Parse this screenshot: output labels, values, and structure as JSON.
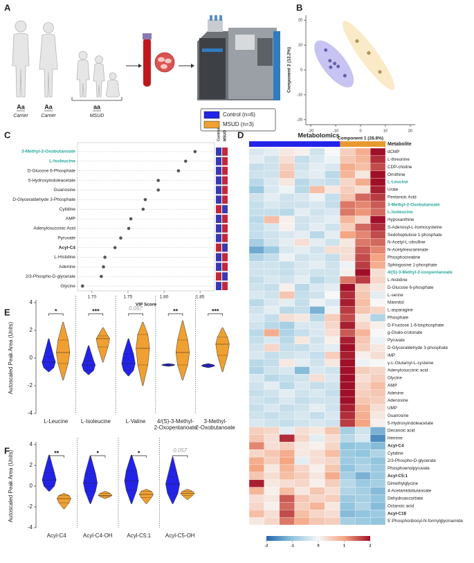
{
  "illustration": {
    "panel": "A",
    "people": [
      {
        "genotype": "Aa",
        "status": "Carrier"
      },
      {
        "genotype": "Aa",
        "status": "Carrier"
      },
      {
        "genotype": "aa",
        "status": "MSUD"
      }
    ],
    "legend": [
      {
        "label": "Control (n=6)",
        "color": "#2323e8"
      },
      {
        "label": "MSUD (n=3)",
        "color": "#f0a030"
      }
    ]
  },
  "chart_data": [
    {
      "type": "scatter",
      "panel": "B",
      "xlabel": "Component 1 (28.8%)",
      "ylabel": "Component 2 (12.2%)",
      "xlim": [
        -22,
        22
      ],
      "ylim": [
        -22,
        22
      ],
      "xticks": [
        -20,
        -10,
        0,
        10,
        20
      ],
      "yticks": [
        -20,
        -10,
        0,
        10,
        20
      ],
      "series": [
        {
          "color": "#6a5cc4",
          "ellipse_color": "#bdb8f0",
          "x": [
            -14,
            -12.3,
            -10.4,
            -9,
            -12,
            -6.3
          ],
          "y": [
            8,
            3.7,
            2.6,
            1.4,
            1.1,
            -2.3
          ]
        },
        {
          "color": "#c49a45",
          "ellipse_color": "#f9e6bd",
          "x": [
            -1.4,
            3.3,
            7.8
          ],
          "y": [
            11.6,
            6.8,
            -0.8
          ]
        }
      ]
    },
    {
      "type": "dot",
      "panel": "C",
      "categories": [
        "3-Methyl-2-Oxobutanoate",
        "L-Isoleucine",
        "D-Glucose 6-Phosphate",
        "5-Hydroxyindoleacetate",
        "Guanosine",
        "D-Glyceraldehyde 3-Phosphate",
        "Cytidine",
        "AMP",
        "Adenylosuccinic Acid",
        "Pyruvate",
        "Acyl-C4",
        "L-Histidine",
        "Adenine",
        "2/3-Phospho-D-glycerate",
        "Glycine"
      ],
      "values": [
        1.843,
        1.83,
        1.82,
        1.792,
        1.792,
        1.774,
        1.771,
        1.754,
        1.751,
        1.74,
        1.732,
        1.718,
        1.716,
        1.713,
        1.687
      ],
      "xlim": [
        1.68,
        1.87
      ],
      "xticks": [
        {
          "value": 1.7,
          "label": "1.70"
        },
        1.75,
        {
          "value": 1.8,
          "label": "1.80"
        },
        1.85
      ],
      "xlabel": "VIP Score",
      "color": "#555555",
      "highlight_color": "#27a89a",
      "highlight_rows": [
        0,
        1
      ],
      "bold_rows": [
        10
      ],
      "group_labels": [
        "Control",
        "MSUD"
      ],
      "strip_colors": [
        [
          "#3a3ab0",
          "#c0283c"
        ],
        [
          "#3a3ab0",
          "#c0283c"
        ],
        [
          "#3a3ab0",
          "#c0283c"
        ],
        [
          "#3a3ab0",
          "#c0283c"
        ],
        [
          "#3a3ab0",
          "#c0283c"
        ],
        [
          "#3a3ab0",
          "#c0283c"
        ],
        [
          "#c0283c",
          "#3a3ab0"
        ],
        [
          "#3a3ab0",
          "#c0283c"
        ],
        [
          "#3a3ab0",
          "#c0283c"
        ],
        [
          "#3a3ab0",
          "#c0283c"
        ],
        [
          "#c0283c",
          "#3a3ab0"
        ],
        [
          "#3a3ab0",
          "#c0283c"
        ],
        [
          "#3a3ab0",
          "#c0283c"
        ],
        [
          "#c0283c",
          "#3a3ab0"
        ],
        [
          "#3a3ab0",
          "#c0283c"
        ]
      ]
    },
    {
      "type": "heatmap",
      "panel": "D",
      "title": "Metabolomics",
      "row_header": "Metabolite",
      "rows": [
        "dCMP",
        "L-threonine",
        "CDP-choline",
        "Ornithine",
        "L-Leucine",
        "Urate",
        "Pentanoic Acid",
        "3-Methyl-2-Oxobutanoate",
        "L-Isoleucine",
        "Hypoxanthine",
        "S-Adenosyl-L-homocysteine",
        "Sedoheptulose 1-phosphate",
        "N-Acetyl-L-citrulline",
        "N-Acetylneuraminate",
        "Phosphocreatine",
        "Sphingosine 1-phosphate",
        "4/(S)-3-Methyl-2-oxopentanoate",
        "L-histidine",
        "D-Glucose 6-phosphate",
        "L-serine",
        "Mannitol",
        "L-asparagine",
        "Phosphate",
        "D-Fructose 1-6-bisphosphate",
        "g-Oxalo-crotonate",
        "Pyruvate",
        "D-Glyceraldehyde 3-phosphate",
        "IMP",
        "γ-L-Glutamyl-L-cysteine",
        "Adenylosuccinic acid",
        "Glycine",
        "AMP",
        "Adenine",
        "Adenosine",
        "UMP",
        "Guanosine",
        "5-Hydroxyindoleacetate",
        "Decanoic acid",
        "Hemine",
        "Acyl-C4",
        "Cytidine",
        "2/3-Phospho-D-glycerate",
        "Phosphoenolpyruvate",
        "Acyl-C5:1",
        "Dimethylglycine",
        "4-Acetamidobutanoate",
        "Dehydroascorbate",
        "Octanoic acid",
        "Acyl-C18",
        "5'-Phosphoribosyl-N-formylglycinamide"
      ],
      "values": [
        [
          -0.3,
          -0.2,
          0.2,
          0.1,
          -0.4,
          0.0,
          0.5,
          0.9,
          2.3
        ],
        [
          -0.2,
          -0.4,
          0.3,
          -0.5,
          -0.3,
          -0.1,
          0.6,
          0.8,
          1.8
        ],
        [
          -0.5,
          -0.4,
          0.5,
          -0.4,
          -0.2,
          -0.3,
          0.9,
          0.7,
          1.6
        ],
        [
          -0.4,
          -0.4,
          0.6,
          -0.3,
          -0.2,
          -0.6,
          0.8,
          0.2,
          2.0
        ],
        [
          -0.6,
          -0.3,
          0.2,
          -0.6,
          -0.4,
          -0.5,
          0.4,
          0.9,
          2.2
        ],
        [
          -0.9,
          -0.3,
          -0.1,
          -0.6,
          0.7,
          0.2,
          0.5,
          0.3,
          1.9
        ],
        [
          -0.4,
          -0.2,
          -0.4,
          -0.3,
          -0.1,
          -0.5,
          0.6,
          1.4,
          1.7
        ],
        [
          -0.5,
          -0.3,
          -0.4,
          -0.4,
          -0.3,
          -0.5,
          1.3,
          1.2,
          1.5
        ],
        [
          -0.5,
          -0.5,
          -0.6,
          -0.2,
          -0.4,
          -0.3,
          1.3,
          1.1,
          1.4
        ],
        [
          -0.6,
          0.7,
          0.1,
          -0.4,
          -0.3,
          -0.2,
          0.8,
          0.4,
          2.0
        ],
        [
          -0.5,
          -0.3,
          0.1,
          -0.4,
          -0.2,
          -0.4,
          0.5,
          1.4,
          1.8
        ],
        [
          -0.5,
          -0.4,
          -0.3,
          -0.2,
          -0.6,
          -0.2,
          1.0,
          1.2,
          1.6
        ],
        [
          -0.8,
          -0.4,
          -0.2,
          0.3,
          -0.2,
          -0.4,
          0.2,
          1.3,
          1.4
        ],
        [
          -1.3,
          -0.9,
          -0.3,
          -0.2,
          -0.4,
          0.3,
          0.3,
          1.5,
          1.2
        ],
        [
          -0.7,
          -0.5,
          -0.1,
          -0.4,
          -0.3,
          -0.5,
          0.3,
          1.6,
          1.0
        ],
        [
          -0.4,
          -0.4,
          -0.5,
          -0.3,
          -0.2,
          -0.4,
          -0.1,
          1.7,
          0.9
        ],
        [
          -0.4,
          -0.4,
          -0.5,
          -0.3,
          -0.4,
          -0.4,
          0.1,
          2.5,
          0.3
        ],
        [
          -0.5,
          -0.3,
          -0.4,
          -0.2,
          -0.6,
          -0.4,
          1.3,
          1.7,
          0.4
        ],
        [
          -0.4,
          -0.5,
          0.1,
          -0.6,
          -0.3,
          -0.2,
          2.0,
          0.5,
          0.2
        ],
        [
          -0.3,
          -0.4,
          0.6,
          -0.5,
          -0.4,
          0.0,
          1.8,
          0.6,
          -0.2
        ],
        [
          -0.6,
          -0.3,
          -0.2,
          -0.5,
          -0.1,
          -0.3,
          1.9,
          0.7,
          0.0
        ],
        [
          -0.4,
          -0.2,
          -0.6,
          -0.5,
          -1.2,
          -0.1,
          1.7,
          0.6,
          0.4
        ],
        [
          -0.3,
          -0.5,
          0.3,
          0.2,
          -0.6,
          0.5,
          1.6,
          0.2,
          -0.7
        ],
        [
          -0.4,
          -0.6,
          -0.8,
          -0.3,
          -0.3,
          0.4,
          1.9,
          0.4,
          0.1
        ],
        [
          -0.6,
          0.9,
          -0.7,
          -0.5,
          -0.3,
          0.3,
          1.5,
          0.8,
          0.0
        ],
        [
          -0.5,
          -0.3,
          -0.6,
          0.2,
          -0.4,
          0.1,
          1.9,
          0.6,
          -0.1
        ],
        [
          -0.4,
          0.4,
          -0.5,
          -0.5,
          -0.3,
          -0.2,
          2.0,
          0.5,
          0.2
        ],
        [
          -0.3,
          -0.5,
          -0.4,
          -0.3,
          -0.5,
          0.5,
          1.9,
          0.1,
          0.3
        ],
        [
          -0.6,
          -0.5,
          0.2,
          -0.2,
          -0.4,
          0.2,
          2.2,
          -0.1,
          0.0
        ],
        [
          -0.7,
          -0.4,
          -0.3,
          -1.1,
          -0.3,
          -0.4,
          2.1,
          0.5,
          0.4
        ],
        [
          -0.3,
          -0.6,
          -0.5,
          -0.4,
          0.3,
          -0.3,
          2.0,
          0.3,
          0.5
        ],
        [
          -0.4,
          -0.2,
          -0.6,
          -0.3,
          -0.5,
          -0.4,
          2.0,
          0.4,
          0.7
        ],
        [
          -0.5,
          -0.4,
          -0.2,
          -0.4,
          -0.3,
          -0.5,
          2.1,
          0.5,
          0.6
        ],
        [
          -0.4,
          -0.5,
          -0.3,
          -0.5,
          -0.4,
          -0.4,
          2.0,
          0.6,
          0.5
        ],
        [
          -0.5,
          -0.3,
          -0.5,
          -0.4,
          -0.2,
          -0.4,
          1.9,
          0.8,
          0.3
        ],
        [
          -0.4,
          -0.5,
          -0.4,
          -0.3,
          -0.5,
          -0.3,
          1.8,
          0.9,
          0.2
        ],
        [
          -0.3,
          -0.4,
          -0.5,
          -0.4,
          -0.3,
          -0.4,
          1.7,
          1.0,
          0.1
        ],
        [
          0.5,
          0.4,
          -0.2,
          0.3,
          0.2,
          0.6,
          -0.8,
          -0.4,
          -1.2
        ],
        [
          0.6,
          0.3,
          1.8,
          0.4,
          -0.2,
          0.3,
          -0.6,
          -0.3,
          -1.6
        ],
        [
          1.2,
          0.3,
          0.5,
          0.2,
          0.1,
          0.4,
          -1.0,
          -0.9,
          -1.1
        ],
        [
          0.4,
          0.6,
          0.9,
          0.2,
          0.3,
          0.7,
          -0.9,
          -1.0,
          -0.7
        ],
        [
          0.9,
          0.5,
          1.0,
          -0.2,
          0.3,
          0.4,
          -0.9,
          -0.8,
          -1.0
        ],
        [
          1.0,
          0.2,
          0.8,
          0.4,
          0.1,
          0.6,
          -1.0,
          -0.7,
          -0.9
        ],
        [
          0.6,
          0.3,
          0.7,
          0.5,
          0.2,
          0.9,
          -0.8,
          -1.2,
          -0.9
        ],
        [
          1.9,
          0.2,
          0.3,
          0.4,
          0.1,
          0.5,
          -0.6,
          -0.9,
          -0.8
        ],
        [
          0.8,
          0.1,
          0.7,
          0.2,
          0.6,
          0.3,
          -0.7,
          -0.8,
          -1.1
        ],
        [
          0.3,
          0.2,
          1.5,
          0.6,
          0.4,
          0.5,
          -0.9,
          -0.8,
          -1.0
        ],
        [
          0.4,
          0.1,
          1.4,
          0.5,
          0.8,
          0.2,
          -1.0,
          -0.7,
          -1.1
        ],
        [
          0.7,
          0.3,
          1.6,
          0.7,
          0.4,
          0.3,
          -1.1,
          -1.0,
          -0.9
        ],
        [
          0.2,
          0.4,
          1.3,
          0.9,
          0.6,
          0.5,
          -0.8,
          -0.9,
          -1.0
        ]
      ],
      "column_colors": [
        "#2323e8",
        "#2323e8",
        "#2323e8",
        "#2323e8",
        "#2323e8",
        "#2323e8",
        "#e89a30",
        "#e89a30",
        "#e89a30"
      ],
      "clim": [
        -2,
        2
      ],
      "cbar_ticks": [
        -2,
        -1,
        0,
        1,
        2
      ],
      "highlight_color": "#27a89a",
      "highlight_rows": [
        4,
        7,
        8,
        16
      ],
      "bold_rows": [
        39,
        43,
        48
      ]
    },
    {
      "type": "violin",
      "panel": "E",
      "ylabel": "Autoscaled Peak Area (Units)",
      "ylim": [
        -4,
        4
      ],
      "yticks": [
        -4,
        -2,
        0,
        2,
        4
      ],
      "categories": [
        "L-Leucine",
        "L-Isoleucine",
        "L-Valine",
        "4/(S)-3-Methyl-\n2-Oxopentanoate",
        "3-Methyl-\n2-Oxobutanoate"
      ],
      "annotations": [
        "*",
        "***",
        "0.057",
        "**",
        "***"
      ],
      "series": [
        {
          "color": "#2323e8",
          "min": [
            -1.0,
            -1.2,
            -1.3,
            -0.6,
            -0.7
          ],
          "q1": [
            -0.7,
            -0.9,
            -0.9,
            -0.55,
            -0.62
          ],
          "median": [
            -0.3,
            -0.5,
            -0.4,
            -0.5,
            -0.55
          ],
          "q3": [
            0.1,
            -0.2,
            0.3,
            -0.45,
            -0.48
          ],
          "max": [
            1.4,
            0.9,
            1.4,
            -0.4,
            -0.4
          ]
        },
        {
          "color": "#f0a030",
          "min": [
            -1.6,
            -0.3,
            -2.0,
            -1.6,
            -1.0
          ],
          "q1": [
            -0.4,
            0.8,
            -0.5,
            -0.5,
            0.2
          ],
          "median": [
            0.4,
            1.4,
            0.7,
            0.4,
            1.0
          ],
          "q3": [
            1.3,
            1.6,
            1.7,
            1.3,
            1.5
          ],
          "max": [
            2.6,
            2.2,
            2.6,
            2.7,
            2.2
          ]
        }
      ]
    },
    {
      "type": "violin",
      "panel": "F",
      "ylabel": "Autoscaled Peak Area (Units)",
      "ylim": [
        -4,
        4
      ],
      "yticks": [
        -4,
        -2,
        0,
        2,
        4
      ],
      "categories": [
        "Acyl-C4",
        "Acyl-C4-OH",
        "Acyl-C5:1",
        "Acyl-C5-OH"
      ],
      "annotations": [
        "**",
        "*",
        "*",
        "0.057"
      ],
      "series": [
        {
          "color": "#2323e8",
          "min": [
            -0.5,
            -1.7,
            -1.7,
            -1.7
          ],
          "q1": [
            0.0,
            -0.5,
            -0.4,
            -0.7
          ],
          "median": [
            0.6,
            0.3,
            0.5,
            0.2
          ],
          "q3": [
            1.3,
            1.2,
            1.5,
            0.9
          ],
          "max": [
            3.0,
            2.9,
            3.0,
            2.8
          ]
        },
        {
          "color": "#f0a030",
          "min": [
            -2.2,
            -1.2,
            -1.7,
            -1.3
          ],
          "q1": [
            -1.6,
            -1.0,
            -1.1,
            -0.9
          ],
          "median": [
            -1.2,
            -0.9,
            -0.8,
            -0.7
          ],
          "q3": [
            -0.9,
            -0.7,
            -0.5,
            -0.5
          ],
          "max": [
            -0.7,
            -0.5,
            -0.3,
            -0.3
          ]
        }
      ]
    }
  ]
}
